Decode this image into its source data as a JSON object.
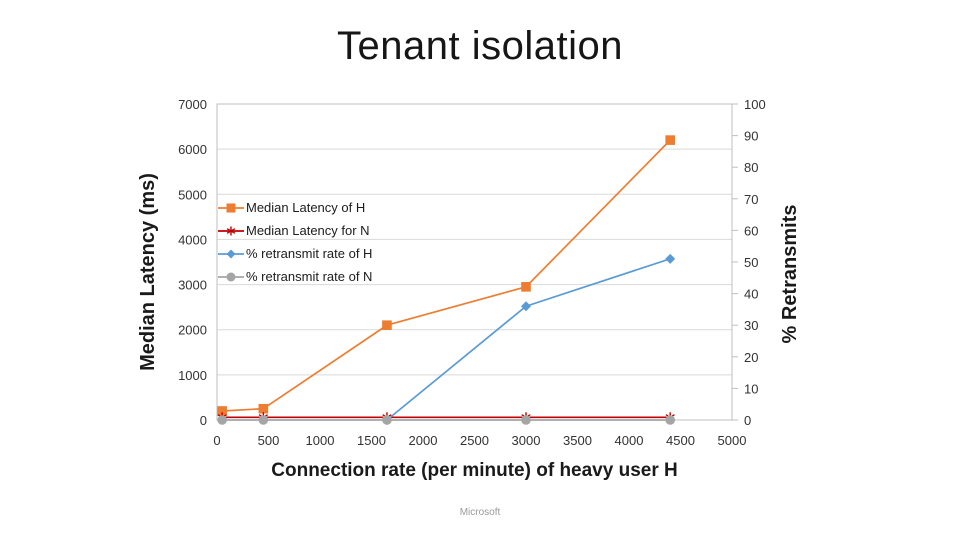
{
  "slide": {
    "title": "Tenant isolation",
    "footer": "Microsoft"
  },
  "chart_data": {
    "type": "line",
    "title": "",
    "x_axis": {
      "label": "Connection rate (per minute) of heavy user H",
      "min": 0,
      "max": 5000,
      "tick_step": 500,
      "tick_labels": [
        "0",
        "500",
        "1000",
        "1500",
        "2000",
        "2500",
        "3000",
        "3500",
        "4000",
        "4500",
        "5000"
      ]
    },
    "y_axis_left": {
      "label": "Median Latency (ms)",
      "min": 0,
      "max": 7000,
      "tick_step": 1000,
      "tick_labels": [
        "0",
        "1000",
        "2000",
        "3000",
        "4000",
        "5000",
        "6000",
        "7000"
      ]
    },
    "y_axis_right": {
      "label": "% Retransmits",
      "min": 0,
      "max": 100,
      "tick_step": 10,
      "tick_labels": [
        "0",
        "10",
        "20",
        "30",
        "40",
        "50",
        "60",
        "70",
        "80",
        "90",
        "100"
      ]
    },
    "grid": "horizontal gridlines at every 1000 ms",
    "legend_position": "inside top-left, transparent background",
    "series": [
      {
        "name": "Median Latency of H",
        "axis": "left",
        "marker": "square",
        "color": "#ED7D31",
        "points": [
          [
            50,
            200
          ],
          [
            450,
            250
          ],
          [
            1650,
            2100
          ],
          [
            3000,
            2950
          ],
          [
            4400,
            6200
          ]
        ]
      },
      {
        "name": "Median Latency for N",
        "axis": "left",
        "marker": "asterisk",
        "color": "#C00000",
        "points": [
          [
            50,
            60
          ],
          [
            450,
            60
          ],
          [
            1650,
            60
          ],
          [
            3000,
            60
          ],
          [
            4400,
            60
          ]
        ]
      },
      {
        "name": "% retransmit rate of H",
        "axis": "right",
        "marker": "diamond",
        "color": "#5B9BD5",
        "points": [
          [
            1650,
            0
          ],
          [
            3000,
            36
          ],
          [
            4400,
            51
          ]
        ]
      },
      {
        "name": "% retransmit rate of N",
        "axis": "right",
        "marker": "circle",
        "color": "#A5A5A5",
        "points": [
          [
            50,
            0
          ],
          [
            450,
            0
          ],
          [
            1650,
            0
          ],
          [
            3000,
            0
          ],
          [
            4400,
            0
          ]
        ]
      }
    ]
  },
  "colors": {
    "gridline": "#D9D9D9",
    "plot_border": "#BFBFBF",
    "tick_text": "#333333",
    "axis_title_text": "#1a1a1a",
    "title_text": "#161616",
    "footer_text": "#9a9a9a"
  }
}
